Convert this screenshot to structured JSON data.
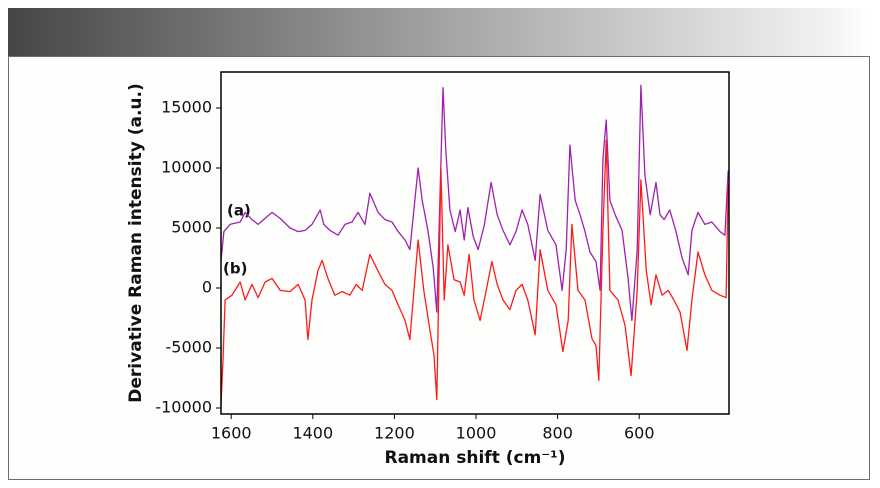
{
  "chart_data": {
    "type": "line",
    "x_label": "Raman shift (cm⁻¹)",
    "y_label": "Derivative Raman intensity (a.u.)",
    "annotations": [
      "(a)",
      "(b)"
    ],
    "xlim": [
      1625,
      380
    ],
    "xticks": [
      1600,
      1400,
      1200,
      1000,
      800,
      600
    ],
    "ylim": [
      -10500,
      18000
    ],
    "yticks": [
      -10000,
      -5000,
      0,
      5000,
      10000,
      15000
    ],
    "grid": false,
    "series": [
      {
        "color": "#a020b0",
        "x": [
          1625,
          1618,
          1603,
          1578,
          1566,
          1549,
          1534,
          1517,
          1500,
          1480,
          1456,
          1436,
          1419,
          1402,
          1382,
          1373,
          1358,
          1338,
          1321,
          1304,
          1289,
          1272,
          1260,
          1240,
          1223,
          1206,
          1191,
          1174,
          1162,
          1142,
          1132,
          1118,
          1105,
          1096,
          1081,
          1074,
          1064,
          1051,
          1039,
          1029,
          1020,
          1007,
          995,
          980,
          963,
          948,
          934,
          917,
          902,
          887,
          873,
          855,
          843,
          824,
          804,
          789,
          779,
          770,
          757,
          745,
          733,
          721,
          706,
          696,
          689,
          681,
          672,
          659,
          642,
          627,
          618,
          605,
          596,
          586,
          573,
          559,
          549,
          539,
          525,
          510,
          495,
          480,
          471,
          456,
          439,
          422,
          402,
          390,
          382
        ],
        "values": [
          2300,
          4700,
          5300,
          5500,
          6300,
          5700,
          5300,
          5800,
          6300,
          5800,
          5000,
          4700,
          4800,
          5300,
          6500,
          5300,
          4800,
          4400,
          5300,
          5500,
          6300,
          5300,
          7900,
          6300,
          5700,
          5500,
          4700,
          4000,
          3200,
          10000,
          7300,
          4800,
          1700,
          -2000,
          16700,
          11500,
          6500,
          4700,
          6500,
          4000,
          6700,
          4300,
          3200,
          5200,
          8800,
          6100,
          4800,
          3600,
          4700,
          6500,
          5300,
          2300,
          7800,
          4800,
          3600,
          -200,
          3200,
          11900,
          7300,
          6100,
          4700,
          3000,
          2200,
          -200,
          10700,
          14000,
          7300,
          6100,
          4800,
          700,
          -2700,
          3200,
          16900,
          9400,
          6100,
          8800,
          6100,
          5700,
          6500,
          4700,
          2500,
          1100,
          4800,
          6300,
          5300,
          5500,
          4700,
          4400,
          9800
        ]
      },
      {
        "color": "#ff1a1a",
        "x": [
          1625,
          1620,
          1615,
          1598,
          1578,
          1566,
          1549,
          1534,
          1517,
          1500,
          1480,
          1456,
          1436,
          1419,
          1412,
          1402,
          1387,
          1377,
          1363,
          1346,
          1328,
          1309,
          1294,
          1279,
          1260,
          1240,
          1223,
          1206,
          1191,
          1174,
          1162,
          1142,
          1128,
          1113,
          1103,
          1096,
          1086,
          1078,
          1069,
          1054,
          1039,
          1029,
          1017,
          1005,
          990,
          975,
          961,
          948,
          934,
          917,
          902,
          887,
          873,
          855,
          843,
          824,
          804,
          787,
          774,
          765,
          750,
          733,
          716,
          706,
          699,
          689,
          681,
          672,
          652,
          635,
          620,
          605,
          596,
          583,
          571,
          559,
          544,
          529,
          515,
          500,
          483,
          471,
          456,
          439,
          422,
          402,
          387,
          382
        ],
        "values": [
          -9700,
          -6000,
          -1000,
          -600,
          500,
          -1000,
          300,
          -800,
          500,
          800,
          -200,
          -300,
          300,
          -1000,
          -4300,
          -1000,
          1500,
          2300,
          800,
          -600,
          -300,
          -600,
          300,
          -200,
          2800,
          1400,
          300,
          -200,
          -1400,
          -2700,
          -4300,
          4000,
          -200,
          -3500,
          -5600,
          -9300,
          10000,
          -1000,
          3600,
          700,
          500,
          -600,
          2800,
          -1000,
          -2700,
          -200,
          2200,
          300,
          -1000,
          -1800,
          -200,
          300,
          -1000,
          -3900,
          3200,
          -200,
          -1400,
          -5300,
          -2700,
          5300,
          -200,
          -1000,
          -4200,
          -4800,
          -7700,
          4800,
          12300,
          -200,
          -1000,
          -3100,
          -7300,
          -200,
          9000,
          1500,
          -1400,
          1100,
          -600,
          -200,
          -1000,
          -2000,
          -5200,
          -1000,
          3000,
          1100,
          -200,
          -600,
          -800,
          8600
        ]
      }
    ]
  }
}
